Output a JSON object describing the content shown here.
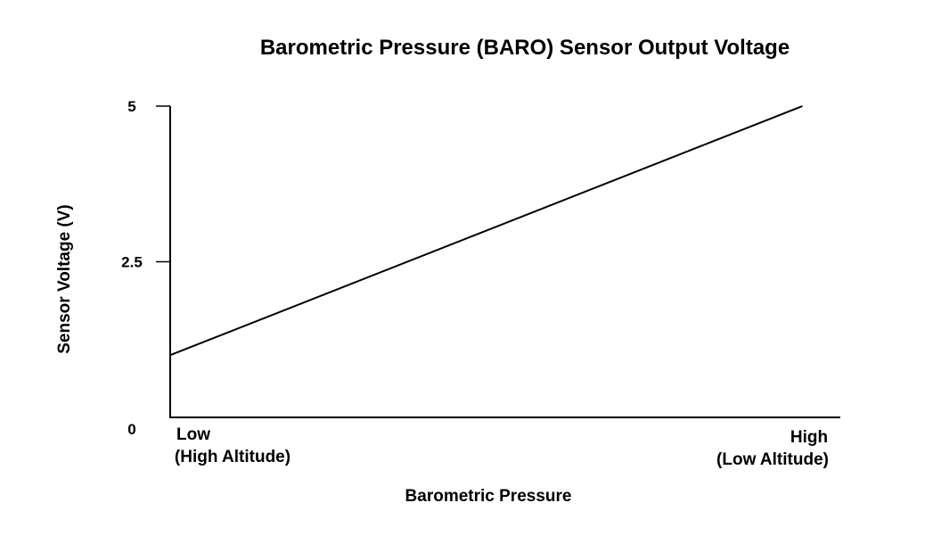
{
  "chart_data": {
    "type": "line",
    "title": "Barometric Pressure (BARO) Sensor Output Voltage",
    "xlabel": "Barometric Pressure",
    "ylabel": "Sensor Voltage (V)",
    "x_tick_labels": [
      {
        "lines": [
          "Low",
          "(High Altitude)"
        ]
      },
      {
        "lines": [
          "High",
          "(Low Altitude)"
        ]
      }
    ],
    "y_ticks": [
      {
        "value": 0,
        "label": "0",
        "tick_mark": false
      },
      {
        "value": 2.5,
        "label": "2.5",
        "tick_mark": true
      },
      {
        "value": 5,
        "label": "5",
        "tick_mark": true
      }
    ],
    "x": [
      0,
      1
    ],
    "series": [
      {
        "values": [
          1.0,
          5.0
        ]
      }
    ],
    "xlim": [
      0,
      1.06
    ],
    "ylim": [
      0,
      5
    ],
    "grid": false,
    "legend": "none",
    "line_color": "#000000"
  }
}
